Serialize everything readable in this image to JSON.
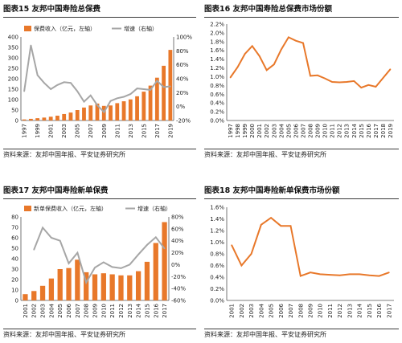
{
  "panels": [
    {
      "title": "图表15 友邦中国寿险总保费",
      "source": "资料来源：友邦中国年报、平安证券研究所"
    },
    {
      "title": "图表16 友邦中国寿险总保费市场份额",
      "source": "资料来源：友邦中国年报、平安证券研究所"
    },
    {
      "title": "图表17 友邦中国寿险新单保费",
      "source": "资料来源：友邦中国年报、平安证券研究所"
    },
    {
      "title": "图表18 友邦中国寿险新单保费市场份额",
      "source": "资料来源：友邦中国年报、平安证券研究所"
    }
  ],
  "colors": {
    "bar": "#E8782A",
    "line_gray": "#A6A6A6",
    "line_orange": "#E8782A"
  },
  "chart_data": [
    {
      "type": "bar",
      "categories": [
        "1997",
        "1998",
        "1999",
        "2000",
        "2001",
        "2002",
        "2003",
        "2004",
        "2005",
        "2006",
        "2007",
        "2008",
        "2009",
        "2010",
        "2011",
        "2012",
        "2013",
        "2014",
        "2015",
        "2016",
        "2017",
        "2018",
        "2019"
      ],
      "x_tick_labels": [
        "1997",
        "1999",
        "2001",
        "2003",
        "2005",
        "2007",
        "2009",
        "2011",
        "2013",
        "2015",
        "2017",
        "2019"
      ],
      "series": [
        {
          "name": "保费收入（亿元，左轴）",
          "kind": "bar",
          "axis": "left",
          "values": [
            5,
            8,
            11,
            14,
            18,
            23,
            31,
            38,
            50,
            62,
            72,
            81,
            70,
            72,
            83,
            92,
            101,
            116,
            138,
            167,
            205,
            262,
            338
          ]
        },
        {
          "name": "增速（右轴）",
          "kind": "line",
          "axis": "right",
          "values": [
            22,
            88,
            45,
            34,
            25,
            31,
            35,
            34,
            22,
            7,
            16,
            2,
            -8,
            8,
            12,
            14,
            18,
            26,
            25,
            24,
            37,
            28,
            29
          ]
        }
      ],
      "ylim_left": [
        0,
        400
      ],
      "yticks_left": [
        0,
        50,
        100,
        150,
        200,
        250,
        300,
        350,
        400
      ],
      "ylim_right": [
        -20,
        100
      ],
      "yticks_right": [
        "-20%",
        "0%",
        "20%",
        "40%",
        "60%",
        "80%",
        "100%"
      ],
      "legend": "top-left"
    },
    {
      "type": "line",
      "categories": [
        "1997",
        "1998",
        "1999",
        "2000",
        "2001",
        "2002",
        "2003",
        "2004",
        "2005",
        "2006",
        "2007",
        "2008",
        "2009",
        "2010",
        "2011",
        "2012",
        "2013",
        "2014",
        "2015",
        "2016",
        "2017",
        "2018",
        "2019"
      ],
      "x_tick_labels": [
        "1997",
        "1998",
        "1999",
        "2000",
        "2001",
        "2002",
        "2003",
        "2004",
        "2005",
        "2006",
        "2007",
        "2008",
        "2009",
        "2010",
        "2011",
        "2012",
        "2013",
        "2014",
        "2015",
        "2016",
        "2017",
        "2018",
        "2019"
      ],
      "series": [
        {
          "name": "",
          "values": [
            0.98,
            1.22,
            1.52,
            1.7,
            1.47,
            1.15,
            1.28,
            1.62,
            1.9,
            1.82,
            1.77,
            1.02,
            1.03,
            0.96,
            0.88,
            0.87,
            0.88,
            0.9,
            0.75,
            0.81,
            0.77,
            0.97,
            1.17
          ]
        }
      ],
      "ylim": [
        0,
        2.2
      ],
      "yticks": [
        "0.0%",
        "0.2%",
        "0.4%",
        "0.6%",
        "0.8%",
        "1.0%",
        "1.2%",
        "1.4%",
        "1.6%",
        "1.8%",
        "2.0%",
        "2.2%"
      ]
    },
    {
      "type": "bar",
      "categories": [
        "2001",
        "2002",
        "2003",
        "2004",
        "2005",
        "2006",
        "2007",
        "2008",
        "2009",
        "2010",
        "2011",
        "2012",
        "2013",
        "2014",
        "2015",
        "2016",
        "2017"
      ],
      "x_tick_labels": [
        "2001",
        "2002",
        "2003",
        "2004",
        "2005",
        "2006",
        "2007",
        "2008",
        "2009",
        "2010",
        "2011",
        "2012",
        "2013",
        "2014",
        "2015",
        "2016",
        "2017"
      ],
      "series": [
        {
          "name": "新单保费收入（亿元，左轴）",
          "kind": "bar",
          "axis": "left",
          "values": [
            6,
            9,
            14,
            21,
            30,
            31,
            39,
            27,
            25,
            26,
            25,
            24,
            24,
            28,
            37,
            55,
            75
          ]
        },
        {
          "name": "增速（右轴）",
          "kind": "line",
          "axis": "right",
          "values": [
            null,
            25,
            62,
            45,
            40,
            2,
            20,
            -30,
            -5,
            4,
            -4,
            -6,
            0,
            17,
            33,
            46,
            27
          ]
        }
      ],
      "ylim_left": [
        0,
        80
      ],
      "yticks_left": [
        0,
        10,
        20,
        30,
        40,
        50,
        60,
        70,
        80
      ],
      "ylim_right": [
        -60,
        80
      ],
      "yticks_right": [
        "-60%",
        "-40%",
        "-20%",
        "0%",
        "20%",
        "40%",
        "60%",
        "80%"
      ],
      "legend": "top"
    },
    {
      "type": "line",
      "categories": [
        "2001",
        "2002",
        "2003",
        "2004",
        "2005",
        "2006",
        "2007",
        "2008",
        "2009",
        "2010",
        "2011",
        "2012",
        "2013",
        "2014",
        "2015",
        "2016",
        "2017"
      ],
      "x_tick_labels": [
        "2001",
        "2002",
        "2003",
        "2004",
        "2005",
        "2006",
        "2007",
        "2008",
        "2009",
        "2010",
        "2011",
        "2012",
        "2013",
        "2014",
        "2015",
        "2016",
        "2017"
      ],
      "series": [
        {
          "name": "",
          "values": [
            0.95,
            0.6,
            0.8,
            1.3,
            1.42,
            1.28,
            1.28,
            0.42,
            0.48,
            0.45,
            0.44,
            0.43,
            0.45,
            0.45,
            0.43,
            0.42,
            0.48
          ]
        }
      ],
      "ylim": [
        0,
        1.6
      ],
      "yticks": [
        "0.0%",
        "0.2%",
        "0.4%",
        "0.6%",
        "0.8%",
        "1.0%",
        "1.2%",
        "1.4%",
        "1.6%"
      ]
    }
  ]
}
